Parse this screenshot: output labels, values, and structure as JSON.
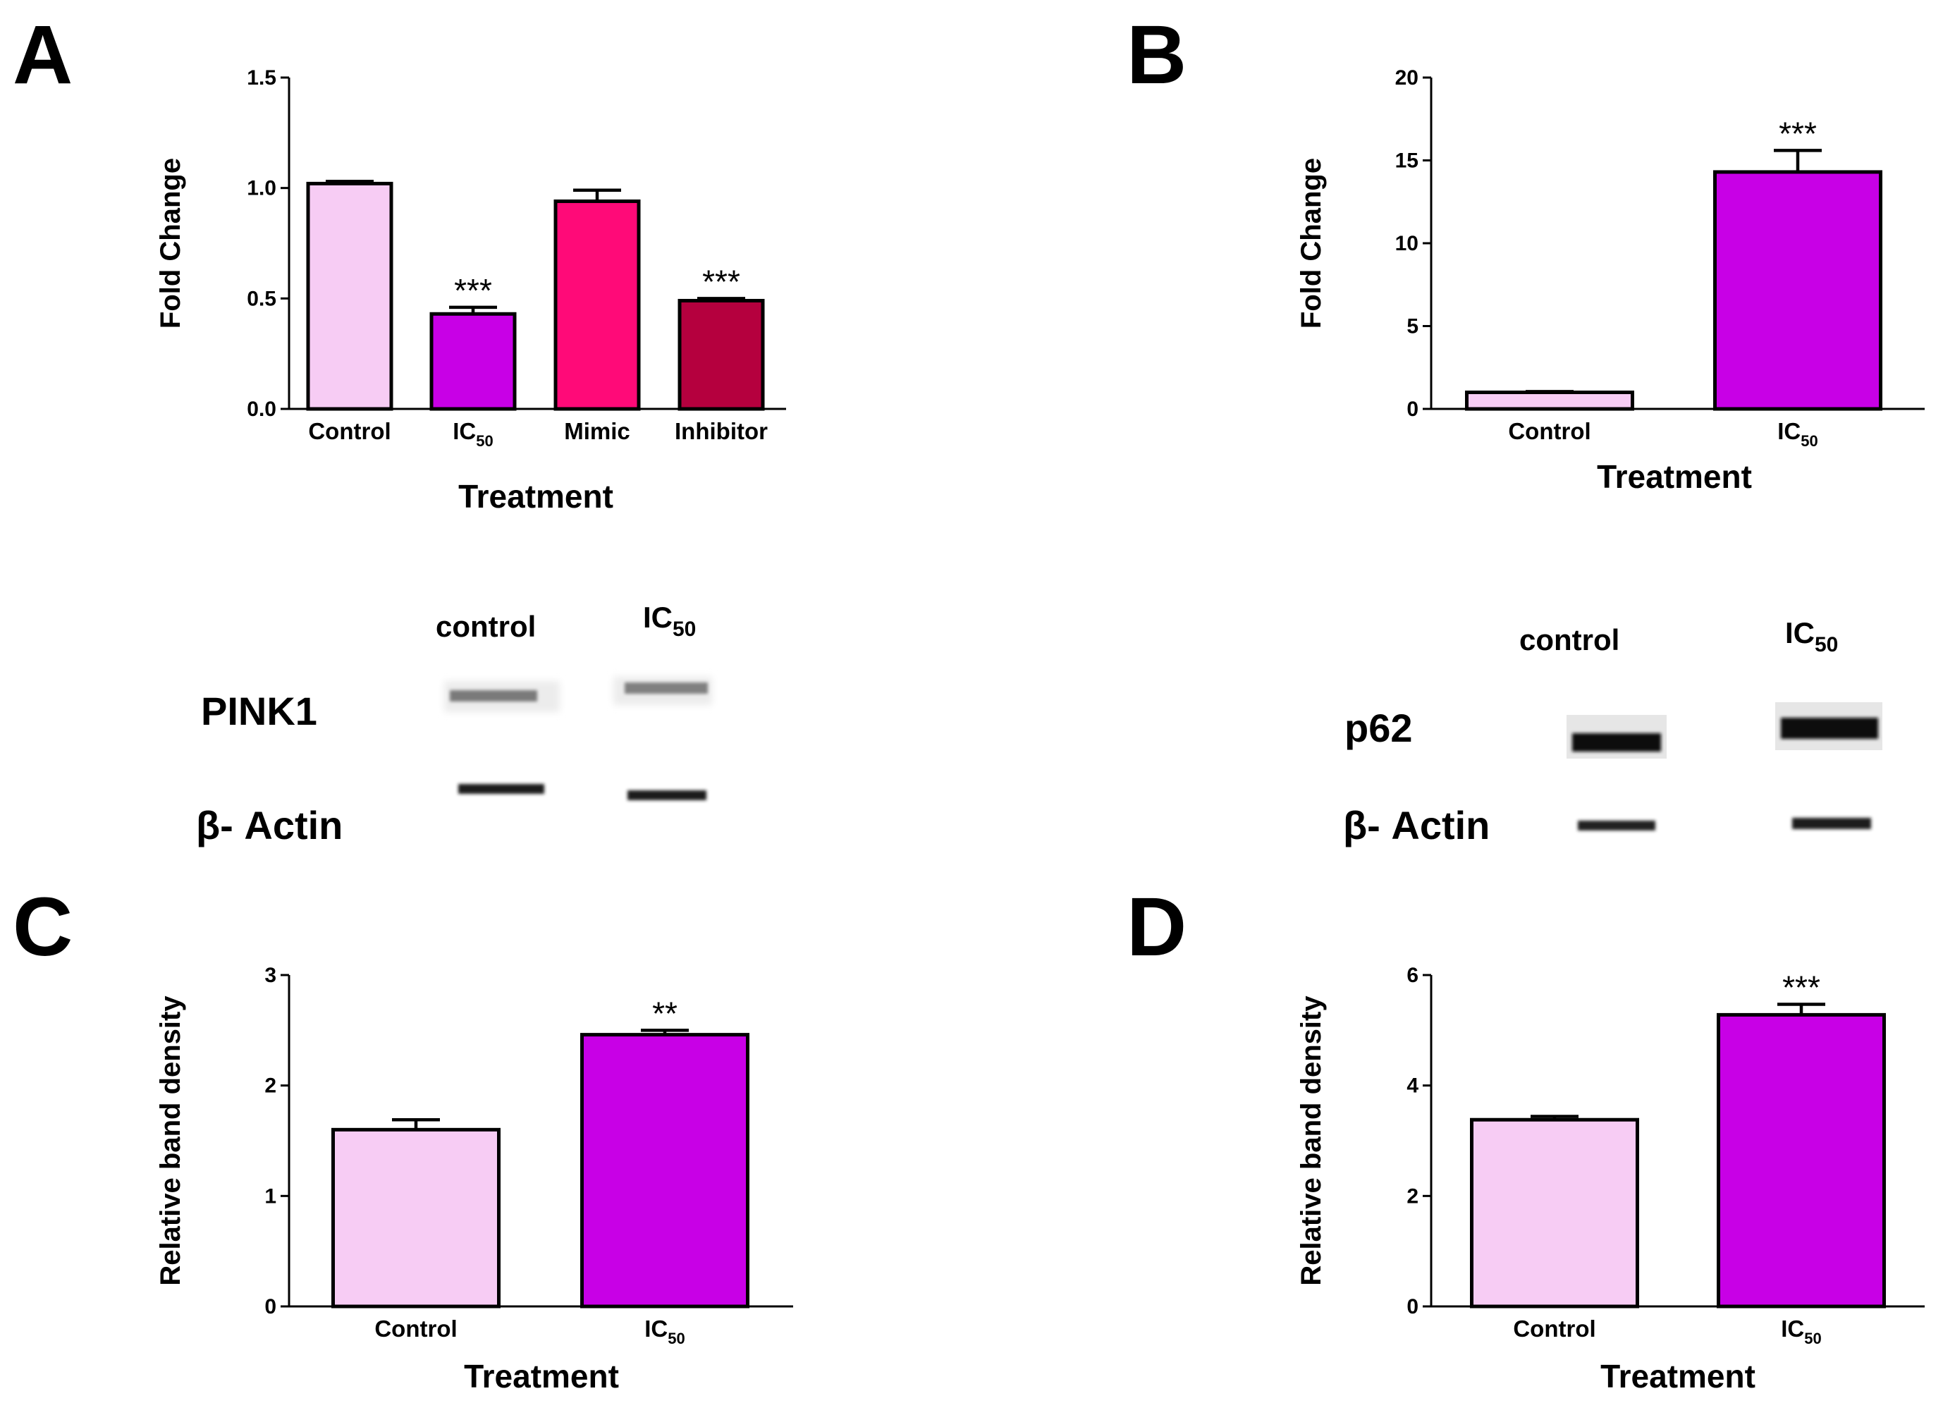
{
  "figure": {
    "panels": [
      "A",
      "B",
      "C",
      "D"
    ]
  },
  "colors": {
    "control": "#f7ccf4",
    "ic50": "#c800e6",
    "mimic": "#ff0a78",
    "inhibitor": "#b5003e"
  },
  "chart_data": [
    {
      "id": "A",
      "type": "bar",
      "ylabel": "Fold Change",
      "xlabel": "Treatment",
      "ylim": [
        0,
        1.5
      ],
      "yticks": [
        "0.0",
        "0.5",
        "1.0",
        "1.5"
      ],
      "ytick_values": [
        0,
        0.5,
        1.0,
        1.5
      ],
      "categories": [
        {
          "label": "Control",
          "sub": ""
        },
        {
          "label": "IC",
          "sub": "50"
        },
        {
          "label": "Mimic",
          "sub": ""
        },
        {
          "label": "Inhibitor",
          "sub": ""
        }
      ],
      "values": [
        1.02,
        0.43,
        0.94,
        0.49
      ],
      "errors": [
        0.01,
        0.03,
        0.05,
        0.01
      ],
      "colors": [
        "#f7ccf4",
        "#c800e6",
        "#ff0a78",
        "#b5003e"
      ],
      "significance": [
        "",
        "***",
        "",
        "***"
      ]
    },
    {
      "id": "B",
      "type": "bar",
      "ylabel": "Fold Change",
      "xlabel": "Treatment",
      "ylim": [
        0,
        20
      ],
      "yticks": [
        "0",
        "5",
        "10",
        "15",
        "20"
      ],
      "ytick_values": [
        0,
        5,
        10,
        15,
        20
      ],
      "categories": [
        {
          "label": "Control",
          "sub": ""
        },
        {
          "label": "IC",
          "sub": "50"
        }
      ],
      "values": [
        1.0,
        14.3
      ],
      "errors": [
        0.05,
        1.3
      ],
      "colors": [
        "#f7ccf4",
        "#c800e6"
      ],
      "significance": [
        "",
        "***"
      ]
    },
    {
      "id": "C",
      "type": "bar",
      "ylabel": "Relative band density",
      "xlabel": "Treatment",
      "ylim": [
        0,
        3
      ],
      "yticks": [
        "0",
        "1",
        "2",
        "3"
      ],
      "ytick_values": [
        0,
        1,
        2,
        3
      ],
      "categories": [
        {
          "label": "Control",
          "sub": ""
        },
        {
          "label": "IC",
          "sub": "50"
        }
      ],
      "values": [
        1.6,
        2.46
      ],
      "errors": [
        0.09,
        0.04
      ],
      "colors": [
        "#f7ccf4",
        "#c800e6"
      ],
      "significance": [
        "",
        "**"
      ]
    },
    {
      "id": "D",
      "type": "bar",
      "ylabel": "Relative band density",
      "xlabel": "Treatment",
      "ylim": [
        0,
        6
      ],
      "yticks": [
        "0",
        "2",
        "4",
        "6"
      ],
      "ytick_values": [
        0,
        2,
        4,
        6
      ],
      "categories": [
        {
          "label": "Control",
          "sub": ""
        },
        {
          "label": "IC",
          "sub": "50"
        }
      ],
      "values": [
        3.38,
        5.28
      ],
      "errors": [
        0.06,
        0.19
      ],
      "colors": [
        "#f7ccf4",
        "#c800e6"
      ],
      "significance": [
        "",
        "***"
      ]
    }
  ],
  "blots": {
    "left": {
      "lanes": [
        {
          "label": "control",
          "sub": ""
        },
        {
          "label": "IC",
          "sub": "50"
        }
      ],
      "proteins": [
        {
          "label": "PINK1"
        },
        {
          "label": "β- Actin"
        }
      ]
    },
    "right": {
      "lanes": [
        {
          "label": "control",
          "sub": ""
        },
        {
          "label": "IC",
          "sub": "50"
        }
      ],
      "proteins": [
        {
          "label": "p62"
        },
        {
          "label": "β- Actin"
        }
      ]
    }
  }
}
